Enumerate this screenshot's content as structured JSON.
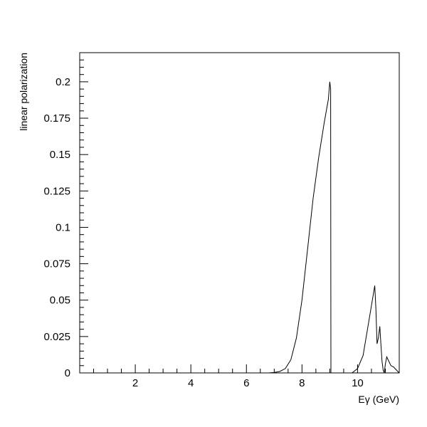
{
  "chart_data": {
    "type": "line",
    "title": "",
    "xlabel": "Eγ (GeV)",
    "ylabel": "linear polarization",
    "xlim": [
      0,
      11.5
    ],
    "ylim": [
      0,
      0.22
    ],
    "grid": false,
    "x_ticks": [
      2,
      4,
      6,
      8,
      10
    ],
    "x_tick_labels": [
      "2",
      "4",
      "6",
      "8",
      "10"
    ],
    "y_ticks": [
      0,
      0.025,
      0.05,
      0.075,
      0.1,
      0.125,
      0.15,
      0.175,
      0.2
    ],
    "y_tick_labels": [
      "0",
      "0.025",
      "0.05",
      "0.075",
      "0.1",
      "0.125",
      "0.15",
      "0.175",
      "0.2"
    ],
    "series": [
      {
        "color": "#000000",
        "x": [
          0,
          6.8,
          7.0,
          7.2,
          7.4,
          7.6,
          7.8,
          8.0,
          8.2,
          8.4,
          8.6,
          8.8,
          8.95,
          9.0,
          9.03,
          9.04,
          9.06,
          9.1,
          9.8,
          10.0,
          10.2,
          10.4,
          10.55,
          10.62,
          10.66,
          10.7,
          10.75,
          10.8,
          10.84,
          10.88,
          10.92,
          10.96,
          11.0,
          11.05,
          11.1,
          11.2,
          11.3,
          11.35,
          11.45,
          11.5
        ],
        "y": [
          0,
          0,
          0.0003,
          0.001,
          0.003,
          0.009,
          0.024,
          0.05,
          0.085,
          0.12,
          0.148,
          0.172,
          0.188,
          0.2,
          0.195,
          0.0,
          0.0,
          0.0,
          0.0,
          0.003,
          0.012,
          0.035,
          0.052,
          0.06,
          0.044,
          0.02,
          0.024,
          0.032,
          0.02,
          0.008,
          0.002,
          0.0,
          0.006,
          0.011,
          0.009,
          0.005,
          0.004,
          0.003,
          0.001,
          0.0
        ]
      }
    ]
  }
}
